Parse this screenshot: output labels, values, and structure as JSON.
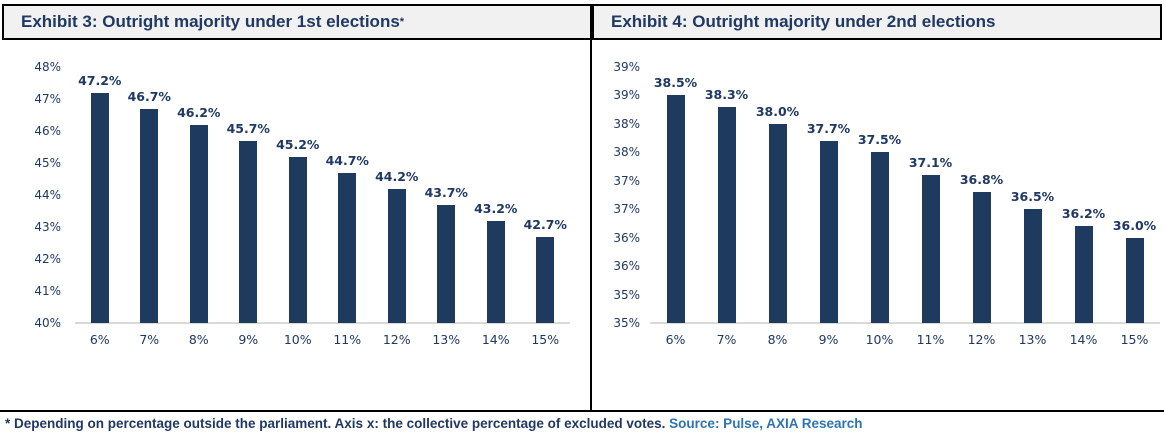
{
  "figure": {
    "footer": {
      "note": "* Depending on percentage outside the parliament. Axis x: the collective percentage of excluded votes. ",
      "source": "Source: Pulse, AXIA Research"
    },
    "colors": {
      "bar": "#1F3A5F",
      "text_navy": "#1F3864",
      "source_blue": "#2E74B5",
      "title_background": "#F1F1F1",
      "axis_baseline": "#D9D9D9",
      "border": "#000000"
    }
  },
  "chart_data": [
    {
      "type": "bar",
      "title": "Exhibit 3: Outright majority under 1st elections",
      "title_superscript": "*",
      "categories": [
        "6%",
        "7%",
        "8%",
        "9%",
        "10%",
        "11%",
        "12%",
        "13%",
        "14%",
        "15%"
      ],
      "values": [
        47.2,
        46.7,
        46.2,
        45.7,
        45.2,
        44.7,
        44.2,
        43.7,
        43.2,
        42.7
      ],
      "data_labels": [
        "47.2%",
        "46.7%",
        "46.2%",
        "45.7%",
        "45.2%",
        "44.7%",
        "44.2%",
        "43.7%",
        "43.2%",
        "42.7%"
      ],
      "xlabel": "",
      "ylabel": "",
      "ylim": [
        40,
        48
      ],
      "grid": false,
      "legend": null,
      "y_ticks": [
        {
          "label": "48%",
          "value": 48
        },
        {
          "label": "47%",
          "value": 47
        },
        {
          "label": "46%",
          "value": 46
        },
        {
          "label": "45%",
          "value": 45
        },
        {
          "label": "44%",
          "value": 44
        },
        {
          "label": "43%",
          "value": 43
        },
        {
          "label": "42%",
          "value": 42
        },
        {
          "label": "41%",
          "value": 41
        },
        {
          "label": "40%",
          "value": 40
        }
      ]
    },
    {
      "type": "bar",
      "title": "Exhibit 4: Outright majority under 2nd elections",
      "title_superscript": "",
      "categories": [
        "6%",
        "7%",
        "8%",
        "9%",
        "10%",
        "11%",
        "12%",
        "13%",
        "14%",
        "15%"
      ],
      "values": [
        38.5,
        38.3,
        38.0,
        37.7,
        37.5,
        37.1,
        36.8,
        36.5,
        36.2,
        36.0
      ],
      "data_labels": [
        "38.5%",
        "38.3%",
        "38.0%",
        "37.7%",
        "37.5%",
        "37.1%",
        "36.8%",
        "36.5%",
        "36.2%",
        "36.0%"
      ],
      "xlabel": "",
      "ylabel": "",
      "ylim": [
        34.5,
        39.0
      ],
      "grid": false,
      "legend": null,
      "y_ticks": [
        {
          "label": "39%",
          "value": 39.0
        },
        {
          "label": "39%",
          "value": 38.5
        },
        {
          "label": "38%",
          "value": 38.0
        },
        {
          "label": "38%",
          "value": 37.5
        },
        {
          "label": "37%",
          "value": 37.0
        },
        {
          "label": "37%",
          "value": 36.5
        },
        {
          "label": "36%",
          "value": 36.0
        },
        {
          "label": "36%",
          "value": 35.5
        },
        {
          "label": "35%",
          "value": 35.0
        },
        {
          "label": "35%",
          "value": 34.5
        }
      ]
    }
  ]
}
